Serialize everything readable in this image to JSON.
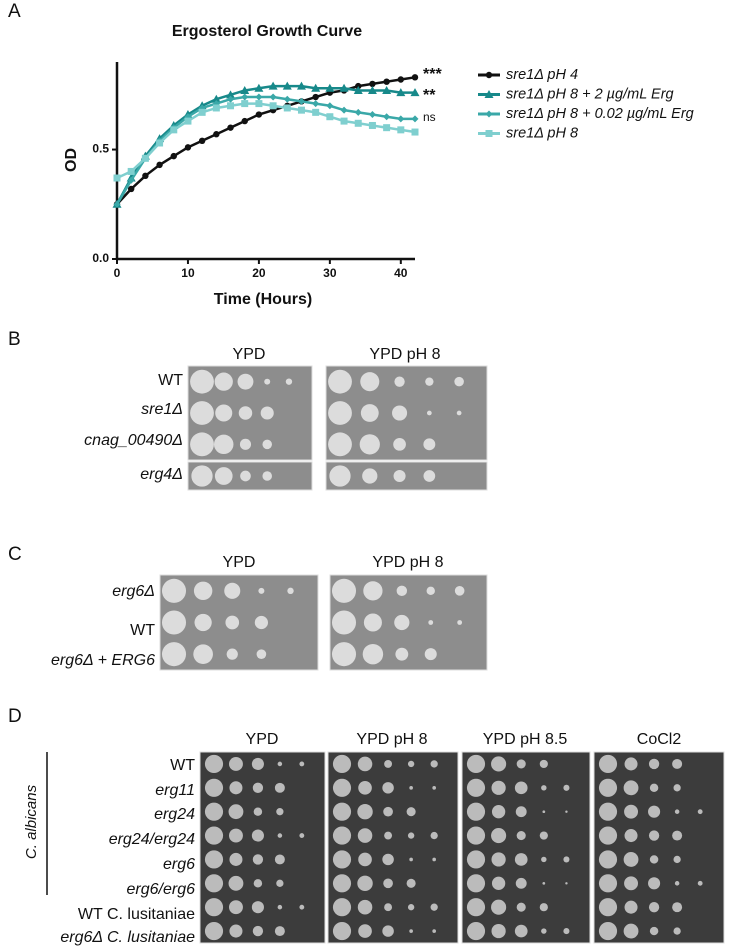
{
  "chart_data": {
    "type": "line",
    "title": "Ergosterol Growth Curve",
    "x_label": "Time (Hours)",
    "y_label": "OD",
    "x": [
      0,
      2,
      4,
      6,
      8,
      10,
      12,
      14,
      16,
      18,
      20,
      22,
      24,
      26,
      28,
      30,
      32,
      34,
      36,
      38,
      40,
      42
    ],
    "series": [
      {
        "name": "sre1Δ pH 4",
        "color": "#111111",
        "values": [
          0.25,
          0.32,
          0.38,
          0.43,
          0.47,
          0.51,
          0.54,
          0.57,
          0.6,
          0.63,
          0.66,
          0.68,
          0.7,
          0.72,
          0.74,
          0.76,
          0.77,
          0.79,
          0.8,
          0.81,
          0.82,
          0.83
        ]
      },
      {
        "name": "sre1Δ pH 8 + 2 µg/mL Erg",
        "color": "#17898a",
        "values": [
          0.25,
          0.37,
          0.47,
          0.55,
          0.61,
          0.66,
          0.7,
          0.73,
          0.75,
          0.77,
          0.78,
          0.79,
          0.79,
          0.79,
          0.78,
          0.78,
          0.78,
          0.77,
          0.77,
          0.77,
          0.76,
          0.76
        ]
      },
      {
        "name": "sre1Δ pH 8 + 0.02 µg/mL Erg",
        "color": "#3aa8a8",
        "values": [
          0.25,
          0.36,
          0.46,
          0.54,
          0.6,
          0.65,
          0.69,
          0.71,
          0.73,
          0.74,
          0.74,
          0.74,
          0.73,
          0.72,
          0.71,
          0.7,
          0.68,
          0.67,
          0.66,
          0.65,
          0.64,
          0.64
        ]
      },
      {
        "name": "sre1Δ pH 8",
        "color": "#7fcfcf",
        "values": [
          0.37,
          0.4,
          0.46,
          0.53,
          0.59,
          0.63,
          0.67,
          0.69,
          0.7,
          0.71,
          0.71,
          0.7,
          0.69,
          0.68,
          0.67,
          0.65,
          0.63,
          0.62,
          0.61,
          0.6,
          0.59,
          0.58
        ]
      }
    ],
    "annotations": [
      "***",
      "**",
      "ns"
    ],
    "xlim": [
      0,
      42
    ],
    "xticks": [
      0,
      10,
      20,
      30,
      40
    ],
    "ylim": [
      0,
      0.9
    ],
    "yticks": [
      {
        "value": 0,
        "label": "0.0"
      },
      0.5
    ]
  },
  "panel_labels": [
    "A",
    "B",
    "C",
    "D"
  ],
  "panel_b": {
    "columns": [
      "YPD",
      "YPD pH 8"
    ],
    "rows": [
      "WT",
      "sre1Δ",
      "cnag_00490Δ",
      "erg4Δ"
    ]
  },
  "panel_c": {
    "columns": [
      "YPD",
      "YPD pH 8"
    ],
    "rows": [
      "erg6Δ",
      "WT",
      "erg6Δ + ERG6"
    ]
  },
  "panel_d": {
    "columns": [
      "YPD",
      "YPD pH 8",
      "YPD pH 8.5",
      "CoCl2"
    ],
    "group": "C. albicans",
    "rows": [
      "WT",
      "erg11",
      "erg24",
      "erg24/erg24",
      "erg6",
      "erg6/erg6",
      "WT C. lusitaniae",
      "erg6Δ C. lusitaniae"
    ]
  }
}
